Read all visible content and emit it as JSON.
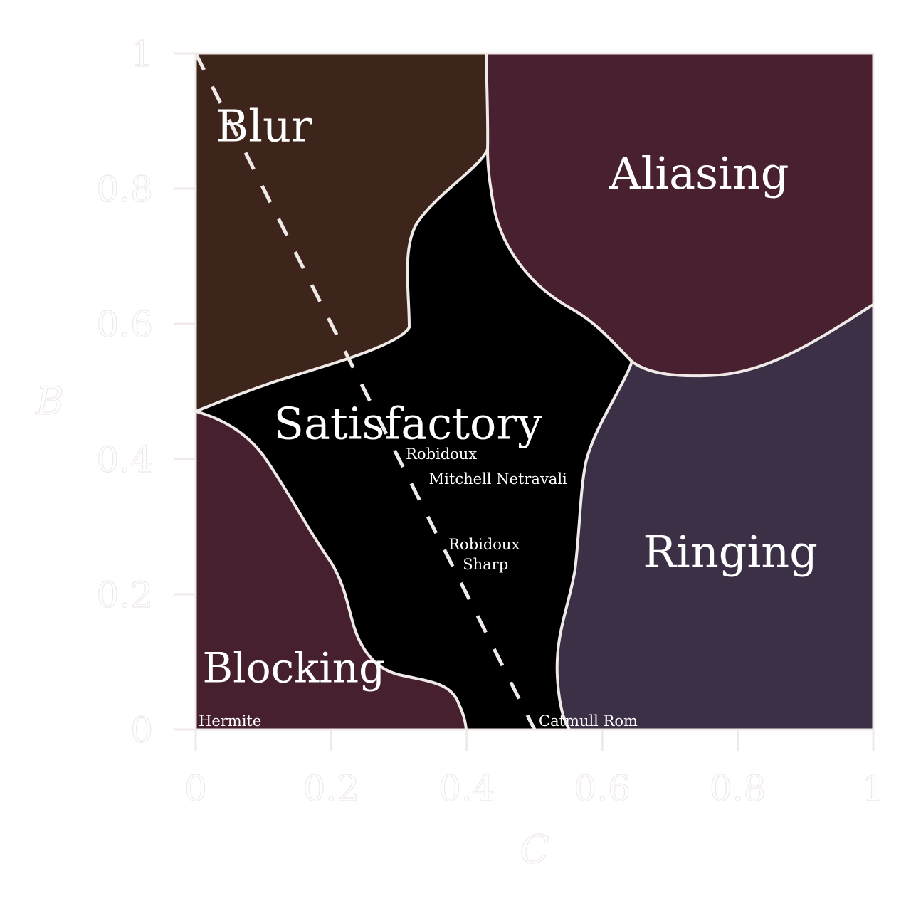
{
  "chart_data": {
    "type": "region",
    "xlabel": "C",
    "ylabel": "B",
    "xlim": [
      0,
      1
    ],
    "ylim": [
      0,
      1
    ],
    "x_ticks": [
      "0",
      "0.2",
      "0.4",
      "0.6",
      "0.8",
      "1"
    ],
    "y_ticks": [
      "0",
      "0.2",
      "0.4",
      "0.6",
      "0.8",
      "1"
    ],
    "grid": false,
    "colors": {
      "blur": "#3d251b",
      "aliasing": "#482030",
      "ringing": "#3b3045",
      "blocking": "#47202f",
      "satisfactory": "#000000",
      "boundary": "#efe9e7"
    },
    "regions": [
      {
        "name": "Blur",
        "label_at": [
          0.03,
          0.87
        ]
      },
      {
        "name": "Aliasing",
        "label_at": [
          0.61,
          0.8
        ]
      },
      {
        "name": "Satisfactory",
        "label_at": [
          0.115,
          0.43
        ]
      },
      {
        "name": "Ringing",
        "label_at": [
          0.66,
          0.24
        ]
      },
      {
        "name": "Blocking",
        "label_at": [
          0.01,
          0.07
        ]
      }
    ],
    "reference_line": {
      "style": "dashed",
      "from": [
        0,
        1
      ],
      "to": [
        0.5,
        0
      ],
      "equation": "B + 2C = 1"
    },
    "points": [
      {
        "name": "Robidoux",
        "x": 0.31,
        "y": 0.38
      },
      {
        "name": "Mitchell Netravali",
        "x": 0.34,
        "y": 0.34
      },
      {
        "name": "Robidoux",
        "name2": "Sharp",
        "x": 0.37,
        "y": 0.26
      },
      {
        "name": "Catmull Rom",
        "x": 0.5,
        "y": 0.0
      },
      {
        "name": "Hermite",
        "x": 0.0,
        "y": 0.0
      }
    ]
  }
}
